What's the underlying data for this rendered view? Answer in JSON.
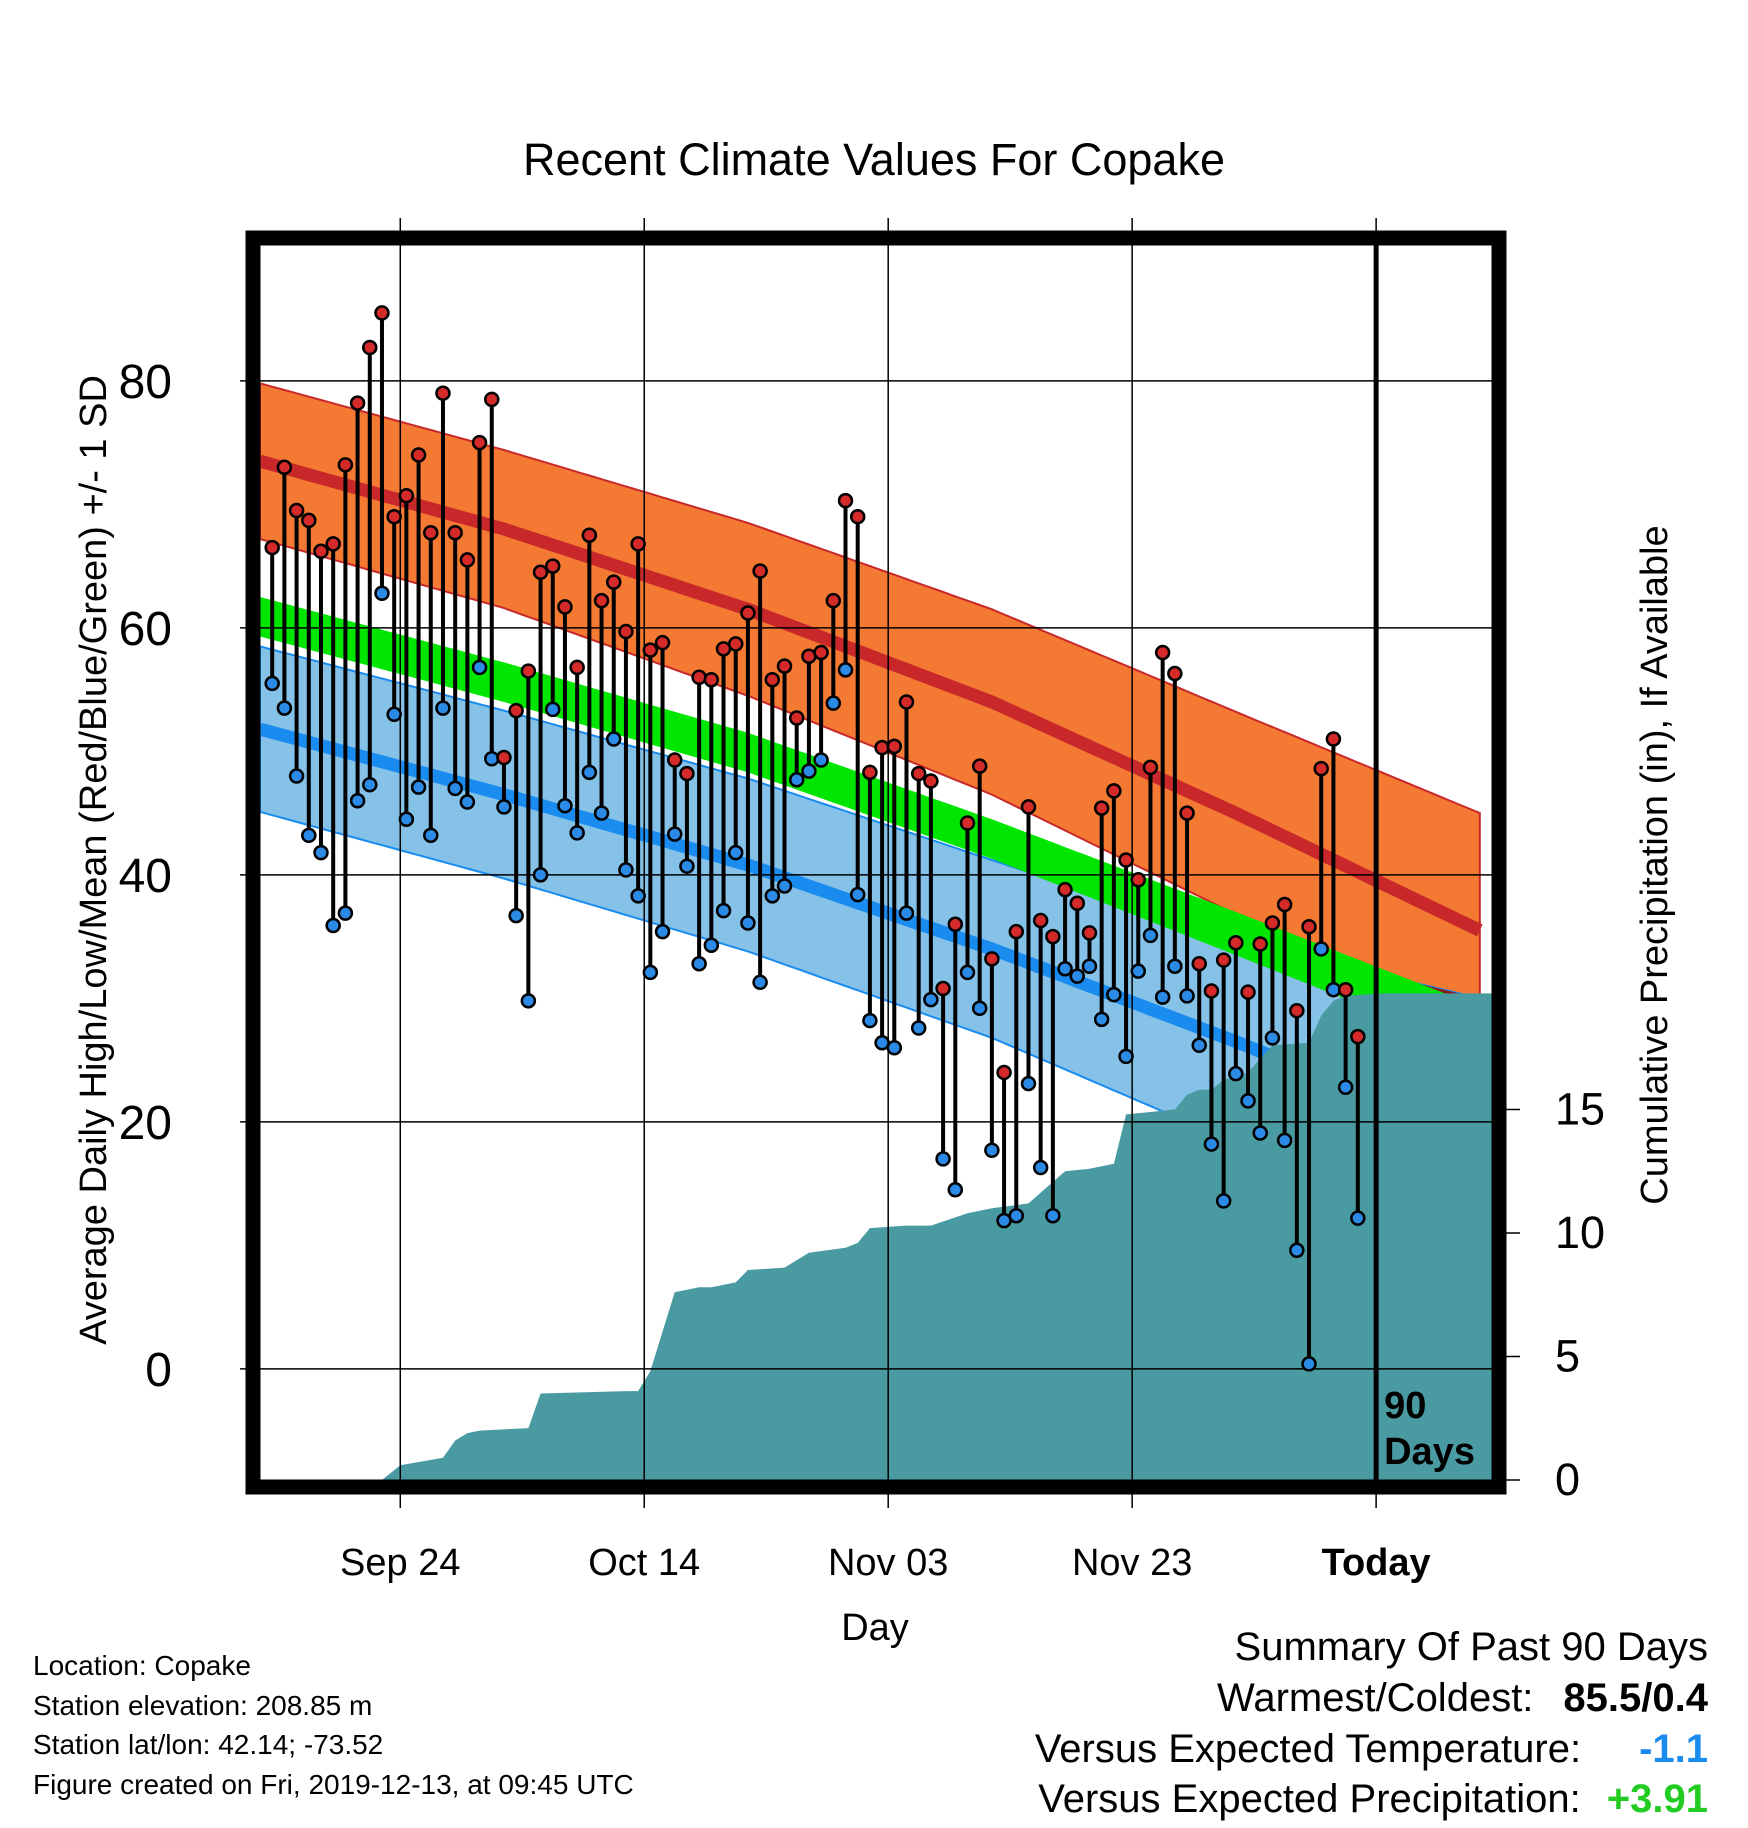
{
  "colors": {
    "high_band": "#f47a34",
    "high_line": "#c8282a",
    "low_band": "#86c2e8",
    "low_line": "#1a8cf0",
    "mean_band": "#00e600",
    "overlap": "#8b1a1a",
    "precip": "#4a9aa2",
    "high_dot": "#d42a2a",
    "low_dot": "#2a8ae6",
    "neg": "#1a8cf0",
    "pos": "#22cc22"
  },
  "chart_data": {
    "type": "line",
    "title": "Recent Climate Values For Copake",
    "xlabel": "Day",
    "ylabel": "Average Daily High/Low/Mean (Red/Blue/Green) +/- 1 SD",
    "y2label": "Cumulative Precipitation (in), If Available",
    "x_ticks": [
      {
        "day": 11.5,
        "label": "Sep 24"
      },
      {
        "day": 31.5,
        "label": "Oct 14"
      },
      {
        "day": 51.5,
        "label": "Nov 03"
      },
      {
        "day": 71.5,
        "label": "Nov 23"
      },
      {
        "day": 91.5,
        "label": "Today"
      }
    ],
    "xlim": [
      0,
      101
    ],
    "ylim": [
      -9,
      91
    ],
    "y_ticks": [
      0,
      20,
      40,
      60,
      80
    ],
    "y2lim": [
      0,
      50
    ],
    "y2_ticks": [
      0,
      5,
      10,
      15
    ],
    "grid": true,
    "today_line": {
      "day": 91.5,
      "label_lines": [
        "90",
        "Days"
      ]
    },
    "expected": {
      "x": [
        0,
        20,
        40,
        60,
        80,
        100
      ],
      "high": [
        73.5,
        68.0,
        61.5,
        54.0,
        45.0,
        35.5
      ],
      "high_sd": [
        6.3,
        6.4,
        7.0,
        7.5,
        8.2,
        9.5
      ],
      "low": [
        51.8,
        46.5,
        40.8,
        34.0,
        26.5,
        18.5
      ],
      "low_sd": [
        6.7,
        6.8,
        7.0,
        7.2,
        8.2,
        11.5
      ],
      "mean_band_top": [
        62.5,
        57.2,
        51.5,
        44.5,
        37.0,
        29.3
      ],
      "mean_band_bottom": [
        59.3,
        54.0,
        48.3,
        41.3,
        33.5,
        25.6
      ]
    },
    "series": [
      {
        "name": "High",
        "values": [
          66.5,
          73,
          69.5,
          68.7,
          66.2,
          66.8,
          73.2,
          78.2,
          82.7,
          85.5,
          69,
          70.7,
          74,
          67.7,
          79,
          67.7,
          65.5,
          75,
          78.5,
          49.5,
          53.3,
          56.5,
          64.5,
          65,
          61.7,
          56.8,
          67.5,
          62.2,
          63.7,
          59.7,
          66.8,
          58.2,
          58.8,
          49.3,
          48.2,
          56,
          55.8,
          58.3,
          58.7,
          61.2,
          64.6,
          55.8,
          56.9,
          52.7,
          57.7,
          58,
          62.2,
          70.3,
          69,
          48.3,
          50.3,
          50.4,
          54,
          48.2,
          47.6,
          30.8,
          36,
          44.2,
          48.8,
          33.2,
          24,
          35.4,
          45.5,
          36.3,
          35,
          38.8,
          37.7,
          35.3,
          45.4,
          46.8,
          41.2,
          39.6,
          48.7,
          58,
          56.3,
          45,
          32.8,
          30.6,
          33.1,
          34.5,
          30.5,
          34.4,
          36.1,
          37.6,
          29,
          35.8,
          48.6,
          51,
          30.7,
          26.9
        ]
      },
      {
        "name": "Low",
        "values": [
          55.5,
          53.5,
          48,
          43.2,
          41.8,
          35.9,
          36.9,
          46,
          47.3,
          62.8,
          53,
          44.5,
          47.1,
          43.2,
          53.5,
          47,
          45.9,
          56.8,
          49.4,
          45.5,
          36.7,
          29.8,
          40,
          53.4,
          45.6,
          43.4,
          48.3,
          45,
          51,
          40.4,
          38.3,
          32.1,
          35.4,
          43.3,
          40.7,
          32.8,
          34.3,
          37.1,
          41.8,
          36.1,
          31.3,
          38.3,
          39.1,
          47.7,
          48.4,
          49.3,
          53.9,
          56.6,
          38.4,
          28.2,
          26.4,
          26,
          36.9,
          27.6,
          29.9,
          17,
          14.5,
          32.1,
          29.2,
          17.7,
          12,
          12.4,
          23.1,
          16.3,
          12.4,
          32.4,
          31.8,
          32.6,
          28.3,
          30.3,
          25.3,
          32.2,
          35.1,
          30.1,
          32.6,
          30.2,
          26.2,
          18.2,
          13.6,
          23.9,
          21.7,
          19.1,
          26.8,
          18.5,
          9.6,
          0.4,
          34,
          30.7,
          22.8,
          12.2
        ]
      },
      {
        "name": "Precipitation",
        "x": [
          0,
          10,
          11.5,
          15,
          16,
          17,
          18,
          22,
          23,
          30,
          31,
          32,
          34,
          36,
          37,
          39,
          40,
          43,
          45,
          48,
          49,
          50,
          53,
          55,
          58,
          60,
          63,
          66,
          68,
          70,
          71,
          75,
          76,
          77,
          78,
          79,
          81,
          83,
          86,
          87,
          88,
          89,
          92,
          101
        ],
        "values": [
          0,
          0,
          0.6,
          0.9,
          1.6,
          1.9,
          2.0,
          2.1,
          3.5,
          3.6,
          3.6,
          4.4,
          7.6,
          7.8,
          7.8,
          8.0,
          8.5,
          8.6,
          9.2,
          9.4,
          9.6,
          10.2,
          10.3,
          10.3,
          10.8,
          11.0,
          11.2,
          12.5,
          12.6,
          12.8,
          14.8,
          15.0,
          15.6,
          15.8,
          15.8,
          16.2,
          16.5,
          17.6,
          17.7,
          18.8,
          19.4,
          19.6,
          19.7,
          19.7
        ]
      }
    ]
  },
  "footer": {
    "location": "Location: Copake",
    "elevation": "Station elevation: 208.85 m",
    "latlon": "Station lat/lon: 42.14; -73.52",
    "created": "Figure created on Fri, 2019-12-13, at 09:45 UTC"
  },
  "summary": {
    "title": "Summary Of Past 90 Days",
    "warmest_label": "Warmest/Coldest:",
    "warmest_value": "85.5/0.4",
    "temp_label": "Versus Expected Temperature:",
    "temp_value": "-1.1",
    "precip_label": "Versus Expected Precipitation:",
    "precip_value": "+3.91"
  }
}
